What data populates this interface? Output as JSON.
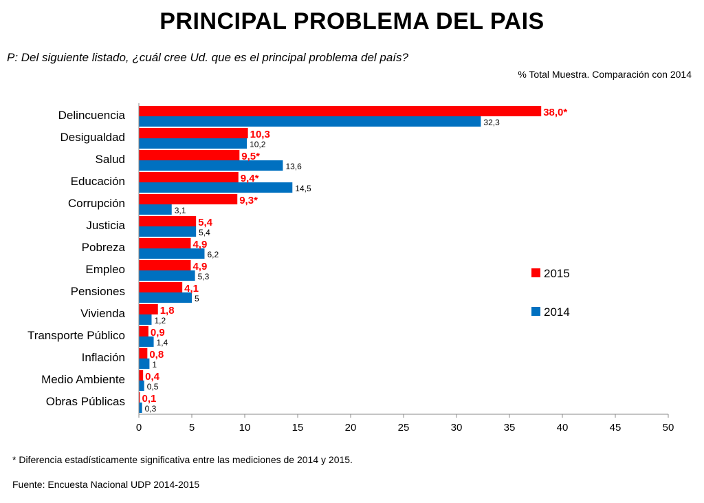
{
  "title": "PRINCIPAL PROBLEMA DEL PAIS",
  "question": "P: Del siguiente listado, ¿cuál cree Ud. que es el principal problema del país?",
  "subtitle": "% Total Muestra. Comparación con 2014",
  "footnote": "* Diferencia estadísticamente significativa entre las mediciones de 2014 y 2015.",
  "source": "Fuente: Encuesta Nacional UDP 2014-2015",
  "chart_data": {
    "type": "bar",
    "orientation": "horizontal",
    "categories": [
      "Delincuencia",
      "Desigualdad",
      "Salud",
      "Educación",
      "Corrupción",
      "Justicia",
      "Pobreza",
      "Empleo",
      "Pensiones",
      "Vivienda",
      "Transporte Público",
      "Inflación",
      "Medio Ambiente",
      "Obras Públicas"
    ],
    "series": [
      {
        "name": "2015",
        "color": "#ff0000",
        "values": [
          38.0,
          10.3,
          9.5,
          9.4,
          9.3,
          5.4,
          4.9,
          4.9,
          4.1,
          1.8,
          0.9,
          0.8,
          0.4,
          0.1
        ],
        "labels": [
          "38,0*",
          "10,3",
          "9,5*",
          "9,4*",
          "9,3*",
          "5,4",
          "4,9",
          "4,9",
          "4,1",
          "1,8",
          "0,9",
          "0,8",
          "0,4",
          "0,1"
        ]
      },
      {
        "name": "2014",
        "color": "#0070c0",
        "values": [
          32.3,
          10.2,
          13.6,
          14.5,
          3.1,
          5.4,
          6.2,
          5.3,
          5.0,
          1.2,
          1.4,
          1.0,
          0.5,
          0.3
        ],
        "labels": [
          "32,3",
          "10,2",
          "13,6",
          "14,5",
          "3,1",
          "5,4",
          "6,2",
          "5,3",
          "5",
          "1,2",
          "1,4",
          "1",
          "0,5",
          "0,3"
        ]
      }
    ],
    "xlim": [
      0,
      50
    ],
    "xticks": [
      "0",
      "5",
      "10",
      "15",
      "20",
      "25",
      "30",
      "35",
      "40",
      "45",
      "50"
    ],
    "grid": false,
    "legend_position": "right"
  }
}
